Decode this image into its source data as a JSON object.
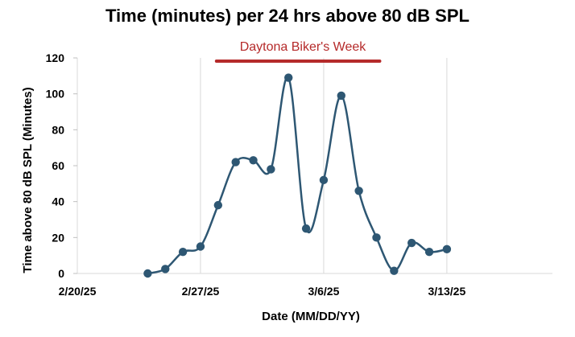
{
  "chart_data": {
    "type": "line",
    "title": "Time (minutes) per 24 hrs above 80 dB SPL",
    "xlabel": "Date (MM/DD/YY)",
    "ylabel": "Time above 80 dB SPL (Minutes)",
    "ylim": [
      0,
      120
    ],
    "yticks": [
      0,
      20,
      40,
      60,
      80,
      100,
      120
    ],
    "xlim": [
      "2025-02-20",
      "2025-03-19"
    ],
    "xticks": [
      {
        "date": "2025-02-20",
        "label": "2/20/25"
      },
      {
        "date": "2025-02-27",
        "label": "2/27/25"
      },
      {
        "date": "2025-03-06",
        "label": "3/6/25"
      },
      {
        "date": "2025-03-13",
        "label": "3/13/25"
      }
    ],
    "grid": "vertical",
    "smooth": true,
    "series": [
      {
        "color": "#2e5773",
        "points": [
          {
            "x": "2025-02-24",
            "y": 0
          },
          {
            "x": "2025-02-25",
            "y": 2.5
          },
          {
            "x": "2025-02-26",
            "y": 12
          },
          {
            "x": "2025-02-27",
            "y": 15
          },
          {
            "x": "2025-02-28",
            "y": 38
          },
          {
            "x": "2025-03-01",
            "y": 62
          },
          {
            "x": "2025-03-02",
            "y": 63
          },
          {
            "x": "2025-03-03",
            "y": 58
          },
          {
            "x": "2025-03-04",
            "y": 109
          },
          {
            "x": "2025-03-05",
            "y": 25
          },
          {
            "x": "2025-03-06",
            "y": 52
          },
          {
            "x": "2025-03-07",
            "y": 99
          },
          {
            "x": "2025-03-08",
            "y": 46
          },
          {
            "x": "2025-03-09",
            "y": 20
          },
          {
            "x": "2025-03-10",
            "y": 1.5
          },
          {
            "x": "2025-03-11",
            "y": 17
          },
          {
            "x": "2025-03-12",
            "y": 12
          },
          {
            "x": "2025-03-13",
            "y": 13.5
          }
        ]
      }
    ],
    "annotation": {
      "text": "Daytona Biker's Week",
      "start": "2025-02-28",
      "end": "2025-03-09",
      "color": "#b52a2a"
    }
  }
}
